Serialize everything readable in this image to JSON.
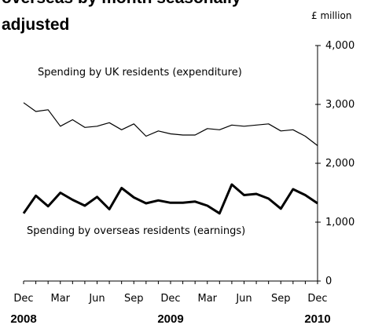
{
  "chart_data": {
    "type": "line",
    "title_lines": [
      "overseas by month seasonally",
      "adjusted"
    ],
    "unit_label": "£ million",
    "ylim": [
      0,
      4000
    ],
    "y_ticks": [
      0,
      1000,
      2000,
      3000,
      4000
    ],
    "y_tick_labels": [
      "0",
      "1,000",
      "2,000",
      "3,000",
      "4,000"
    ],
    "x_tick_labels": [
      "Dec",
      "Mar",
      "Jun",
      "Sep",
      "Dec",
      "Mar",
      "Jun",
      "Sep",
      "Dec"
    ],
    "year_labels": [
      "2008",
      "2009",
      "2010"
    ],
    "months": [
      "2008-12",
      "2009-01",
      "2009-02",
      "2009-03",
      "2009-04",
      "2009-05",
      "2009-06",
      "2009-07",
      "2009-08",
      "2009-09",
      "2009-10",
      "2009-11",
      "2009-12",
      "2010-01",
      "2010-02",
      "2010-03",
      "2010-04",
      "2010-05",
      "2010-06",
      "2010-07",
      "2010-08",
      "2010-09",
      "2010-10",
      "2010-11",
      "2010-12"
    ],
    "series": [
      {
        "name": "Spending by UK residents (expenditure)",
        "color": "#000000",
        "values": [
          3030,
          2880,
          2910,
          2630,
          2740,
          2610,
          2630,
          2690,
          2570,
          2670,
          2460,
          2550,
          2500,
          2480,
          2480,
          2590,
          2570,
          2650,
          2630,
          2650,
          2670,
          2550,
          2570,
          2460,
          2300
        ]
      },
      {
        "name": "Spending by overseas residents (earnings)",
        "color": "#000000",
        "values": [
          1150,
          1450,
          1270,
          1500,
          1380,
          1280,
          1430,
          1220,
          1580,
          1420,
          1320,
          1370,
          1330,
          1330,
          1350,
          1280,
          1150,
          1640,
          1460,
          1480,
          1400,
          1230,
          1560,
          1460,
          1320
        ]
      }
    ]
  }
}
